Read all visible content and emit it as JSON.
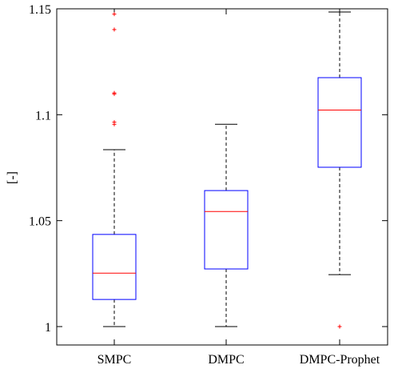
{
  "chart_data": {
    "type": "boxplot",
    "title": "",
    "xlabel": "",
    "ylabel": "[-]",
    "ylim": [
      1.0,
      1.15
    ],
    "yticks": [
      1,
      1.05,
      1.1,
      1.15
    ],
    "ytick_labels": [
      "1",
      "1.05",
      "1.1",
      "1.15"
    ],
    "categories": [
      "SMPC",
      "DMPC",
      "DMPC-Prophet"
    ],
    "boxes": [
      {
        "category": "SMPC",
        "whisker_low": 1.0,
        "q1": 1.0128,
        "median": 1.0252,
        "q3": 1.0435,
        "whisker_high": 1.0835,
        "outliers": [
          1.0955,
          1.0965,
          1.1098,
          1.1103,
          1.1402,
          1.1475
        ]
      },
      {
        "category": "DMPC",
        "whisker_low": 1.0,
        "q1": 1.0272,
        "median": 1.0543,
        "q3": 1.0642,
        "whisker_high": 1.0955,
        "outliers": []
      },
      {
        "category": "DMPC-Prophet",
        "whisker_low": 1.0245,
        "q1": 1.0752,
        "median": 1.1022,
        "q3": 1.1175,
        "whisker_high": 1.1485,
        "outliers": [
          1.0
        ]
      }
    ],
    "colors": {
      "box": "#0000ff",
      "median": "#ff0000",
      "whisker": "#000000",
      "outlier": "#ff0000",
      "axis": "#000000"
    },
    "grid": false
  }
}
